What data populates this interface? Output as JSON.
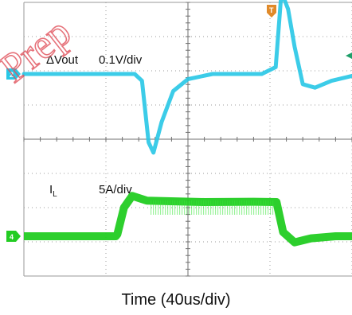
{
  "chart_data": {
    "type": "line",
    "xlabel": "Time (40us/div)",
    "x_divisions": 10,
    "y_divisions": 8,
    "series": [
      {
        "name": "ΔVout",
        "scale_text": "0.1V/div",
        "channel_marker": "2",
        "color": "#27c7e6",
        "unit": "V",
        "x": [
          0,
          1.2,
          1.35,
          1.44,
          1.52,
          1.58,
          1.68,
          1.82,
          2.0,
          2.3,
          2.6,
          2.9,
          3.07,
          3.14,
          3.22,
          3.3,
          3.4,
          3.55,
          3.75,
          4.1,
          4.35
        ],
        "values": [
          0,
          0,
          0,
          -0.02,
          -0.2,
          -0.23,
          -0.14,
          -0.05,
          -0.015,
          0,
          0,
          0,
          0.02,
          0.24,
          0.19,
          0.08,
          -0.03,
          -0.04,
          -0.02,
          0,
          0
        ]
      },
      {
        "name": "I",
        "name_subscript": "L",
        "scale_text": "5A/div",
        "channel_marker": "4",
        "color": "#22cc22",
        "unit": "A",
        "x": [
          0,
          1.12,
          1.14,
          1.22,
          1.32,
          1.5,
          2.2,
          2.8,
          3.08,
          3.16,
          3.3,
          3.5,
          3.8,
          4.35
        ],
        "values": [
          0,
          0,
          0.3,
          4.2,
          5.9,
          5.2,
          5.0,
          5.05,
          5.0,
          0.6,
          -0.9,
          -0.3,
          0,
          0
        ]
      }
    ]
  },
  "trigger_marker": "T",
  "watermark": "Prep"
}
